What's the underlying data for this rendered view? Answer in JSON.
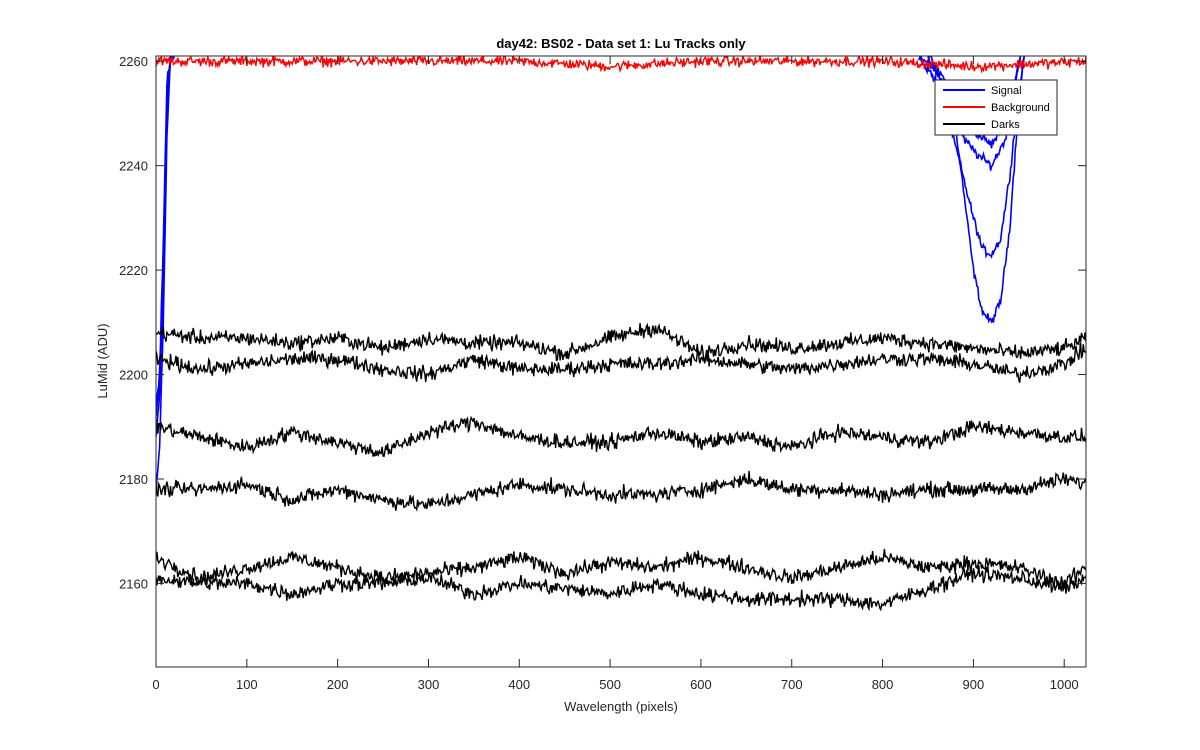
{
  "chart_data": {
    "type": "line",
    "title": "day42: BS02 - Data set 1: Lu Tracks only",
    "xlabel": "Wavelength (pixels)",
    "ylabel": "LuMid (ADU)",
    "xlim": [
      0,
      1024
    ],
    "ylim": [
      2144,
      2261
    ],
    "xticks": [
      0,
      100,
      200,
      300,
      400,
      500,
      600,
      700,
      800,
      900,
      1000
    ],
    "yticks": [
      2160,
      2180,
      2200,
      2220,
      2240,
      2260
    ],
    "grid": false,
    "legend_position": "top-right",
    "legend": [
      {
        "label": "Signal",
        "color": "#0000ff"
      },
      {
        "label": "Background",
        "color": "#ff0000"
      },
      {
        "label": "Darks",
        "color": "#000000"
      }
    ],
    "series": [
      {
        "group": "Signal",
        "color": "#0000ff",
        "x": [
          0,
          4,
          8,
          12,
          16,
          20,
          840,
          860,
          880,
          900,
          910,
          920,
          930,
          940,
          950,
          956
        ],
        "y": [
          2177,
          2186,
          2210,
          2245,
          2261,
          2261,
          2261,
          2258,
          2248,
          2220,
          2212,
          2210,
          2214,
          2228,
          2252,
          2261
        ]
      },
      {
        "group": "Signal",
        "color": "#0000ff",
        "x": [
          0,
          4,
          8,
          12,
          16,
          20,
          840,
          860,
          880,
          900,
          910,
          920,
          930,
          940,
          950,
          956
        ],
        "y": [
          2188,
          2196,
          2218,
          2250,
          2261,
          2261,
          2261,
          2256,
          2244,
          2230,
          2224,
          2223,
          2226,
          2238,
          2254,
          2261
        ]
      },
      {
        "group": "Signal",
        "color": "#0000ff",
        "x": [
          0,
          4,
          8,
          12,
          16,
          20,
          850,
          870,
          890,
          905,
          920,
          935,
          945,
          952
        ],
        "y": [
          2194,
          2200,
          2225,
          2256,
          2261,
          2261,
          2261,
          2256,
          2249,
          2246,
          2244,
          2248,
          2256,
          2261
        ]
      },
      {
        "group": "Signal",
        "color": "#0000ff",
        "x": [
          0,
          4,
          8,
          12,
          16,
          20,
          850,
          870,
          890,
          905,
          920,
          935,
          945,
          952
        ],
        "y": [
          2192,
          2198,
          2220,
          2252,
          2261,
          2261,
          2261,
          2254,
          2245,
          2242,
          2240,
          2245,
          2255,
          2261
        ]
      },
      {
        "group": "Background",
        "color": "#ff0000",
        "x": [
          0,
          100,
          200,
          300,
          400,
          500,
          600,
          700,
          800,
          900,
          1024
        ],
        "y": [
          2260,
          2260,
          2260,
          2260,
          2260,
          2259,
          2260,
          2260,
          2260,
          2259,
          2260
        ]
      },
      {
        "group": "Darks",
        "color": "#000000",
        "x": [
          0,
          50,
          100,
          150,
          200,
          250,
          300,
          350,
          400,
          450,
          500,
          550,
          600,
          650,
          700,
          750,
          800,
          850,
          900,
          950,
          1000,
          1024
        ],
        "y": [
          2208,
          2207,
          2207,
          2206,
          2207,
          2205,
          2207,
          2206,
          2206,
          2204,
          2207,
          2209,
          2204,
          2206,
          2205,
          2206,
          2207,
          2206,
          2205,
          2204,
          2205,
          2207
        ]
      },
      {
        "group": "Darks",
        "color": "#000000",
        "x": [
          0,
          50,
          100,
          150,
          200,
          250,
          300,
          350,
          400,
          450,
          500,
          550,
          600,
          650,
          700,
          750,
          800,
          850,
          900,
          950,
          1000,
          1024
        ],
        "y": [
          2203,
          2201,
          2202,
          2203,
          2203,
          2201,
          2200,
          2203,
          2201,
          2201,
          2202,
          2202,
          2203,
          2202,
          2201,
          2202,
          2203,
          2203,
          2202,
          2200,
          2202,
          2205
        ]
      },
      {
        "group": "Darks",
        "color": "#000000",
        "x": [
          0,
          50,
          100,
          150,
          200,
          250,
          300,
          350,
          400,
          450,
          500,
          550,
          600,
          650,
          700,
          750,
          800,
          850,
          900,
          950,
          1000,
          1024
        ],
        "y": [
          2190,
          2188,
          2186,
          2189,
          2187,
          2185,
          2189,
          2191,
          2188,
          2187,
          2187,
          2189,
          2187,
          2188,
          2186,
          2189,
          2188,
          2187,
          2190,
          2189,
          2188,
          2188
        ]
      },
      {
        "group": "Darks",
        "color": "#000000",
        "x": [
          0,
          50,
          100,
          150,
          200,
          250,
          300,
          350,
          400,
          450,
          500,
          550,
          600,
          650,
          700,
          750,
          800,
          850,
          900,
          950,
          1000,
          1024
        ],
        "y": [
          2178,
          2178,
          2179,
          2176,
          2178,
          2176,
          2175,
          2177,
          2179,
          2178,
          2177,
          2177,
          2178,
          2180,
          2178,
          2178,
          2177,
          2178,
          2178,
          2178,
          2180,
          2179
        ]
      },
      {
        "group": "Darks",
        "color": "#000000",
        "x": [
          0,
          50,
          100,
          150,
          200,
          250,
          300,
          350,
          400,
          450,
          500,
          550,
          600,
          650,
          700,
          750,
          800,
          850,
          900,
          950,
          1000,
          1024
        ],
        "y": [
          2165,
          2161,
          2163,
          2165,
          2163,
          2161,
          2162,
          2163,
          2165,
          2162,
          2164,
          2163,
          2165,
          2163,
          2161,
          2163,
          2165,
          2163,
          2164,
          2163,
          2160,
          2163
        ]
      },
      {
        "group": "Darks",
        "color": "#000000",
        "x": [
          0,
          50,
          100,
          150,
          200,
          250,
          300,
          350,
          400,
          450,
          500,
          550,
          600,
          650,
          700,
          750,
          800,
          850,
          900,
          950,
          1000,
          1024
        ],
        "y": [
          2161,
          2160,
          2160,
          2158,
          2160,
          2160,
          2161,
          2158,
          2160,
          2159,
          2158,
          2160,
          2158,
          2157,
          2157,
          2157,
          2156,
          2159,
          2162,
          2161,
          2159,
          2161
        ]
      }
    ]
  }
}
